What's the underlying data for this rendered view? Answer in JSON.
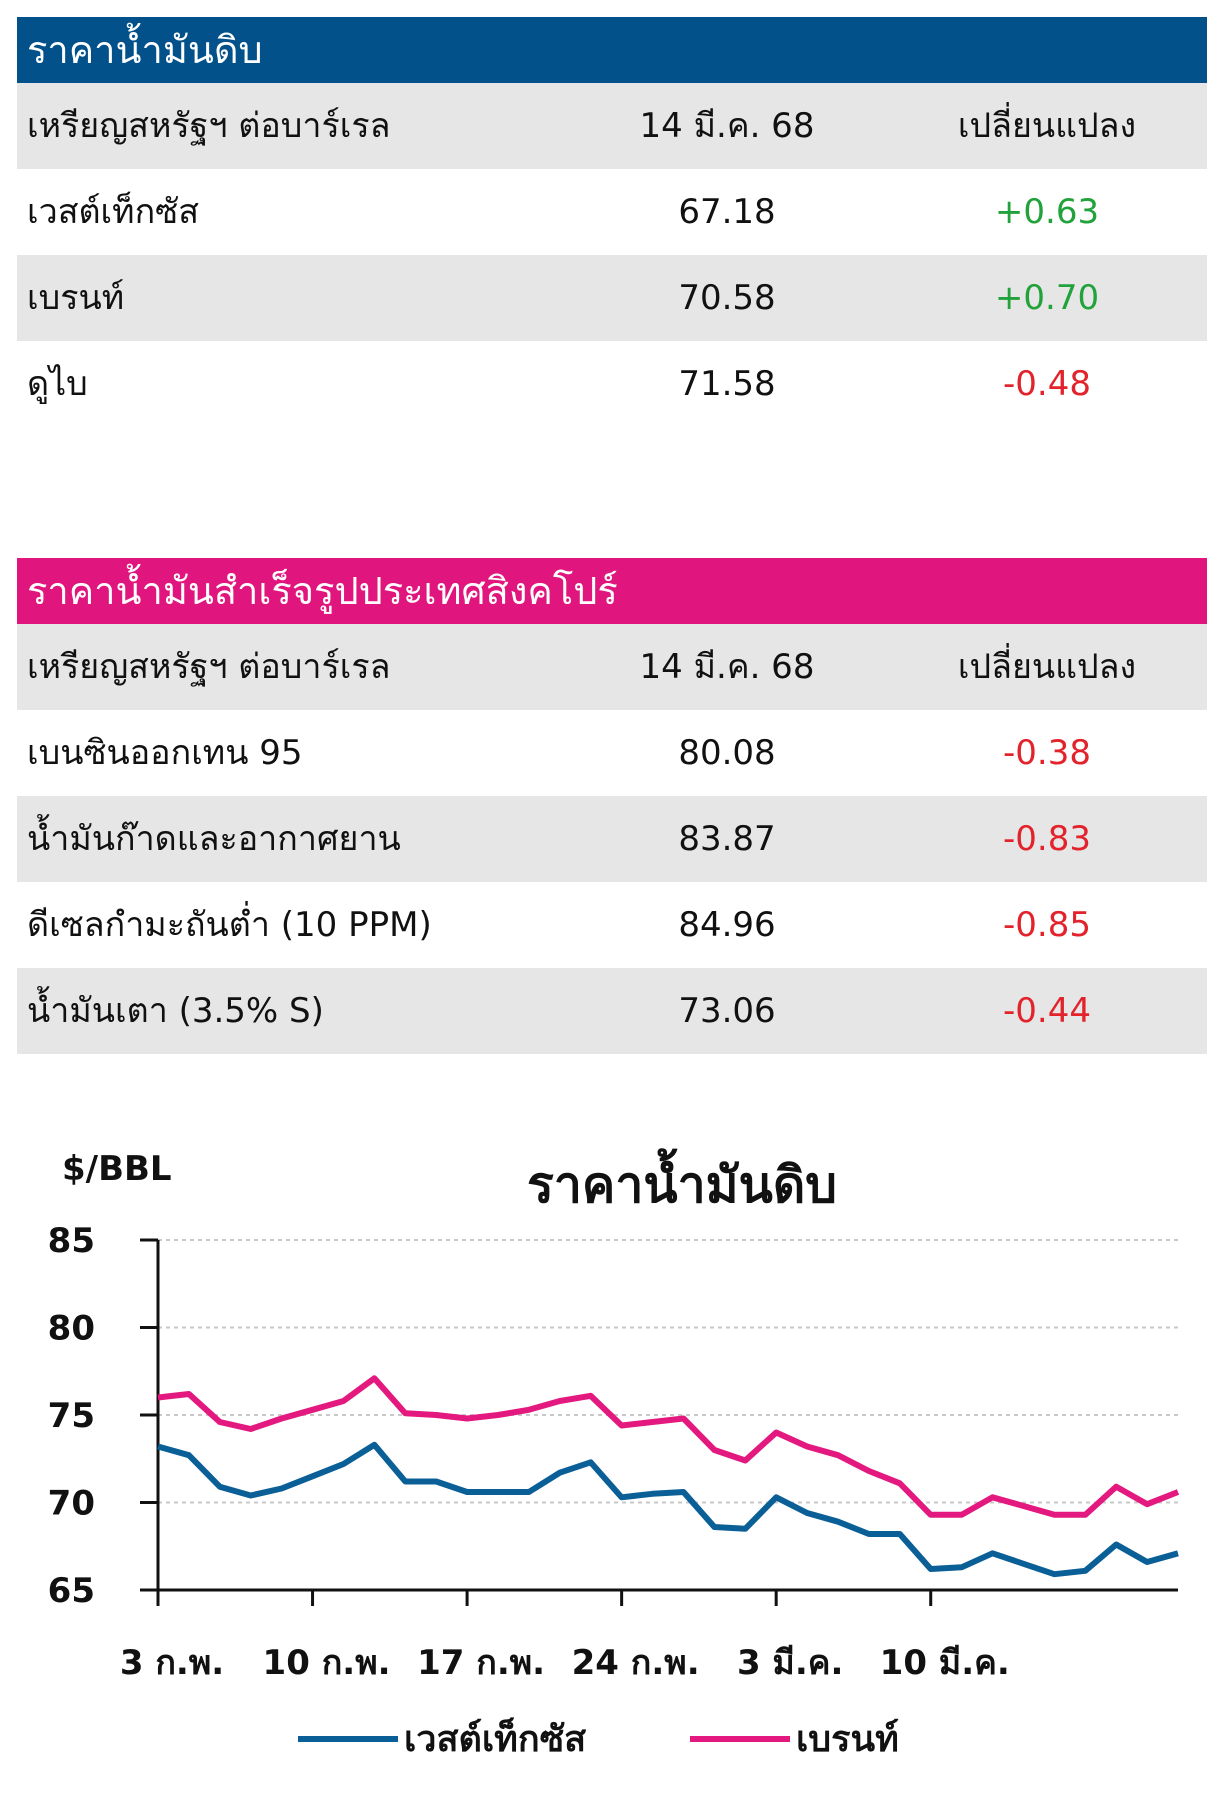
{
  "crude_table": {
    "title": "ราคาน้ำมันดิบ",
    "header": {
      "unit": "เหรียญสหรัฐฯ ต่อบาร์เรล",
      "date": "14 มี.ค. 68",
      "change": "เปลี่ยนแปลง"
    },
    "rows": [
      {
        "name": "เวสต์เท็กซัส",
        "price": "67.18",
        "change": "+0.63",
        "direction": "up"
      },
      {
        "name": "เบรนท์",
        "price": "70.58",
        "change": "+0.70",
        "direction": "up"
      },
      {
        "name": "ดูไบ",
        "price": "71.58",
        "change": "-0.48",
        "direction": "down"
      }
    ],
    "header_color": "#02518a"
  },
  "singapore_table": {
    "title": "ราคาน้ำมันสำเร็จรูปประเทศสิงคโปร์",
    "header": {
      "unit": "เหรียญสหรัฐฯ ต่อบาร์เรล",
      "date": "14 มี.ค. 68",
      "change": "เปลี่ยนแปลง"
    },
    "rows": [
      {
        "name": "เบนซินออกเทน 95",
        "price": "80.08",
        "change": "-0.38",
        "direction": "down"
      },
      {
        "name": "น้ำมันก๊าดและอากาศยาน",
        "price": "83.87",
        "change": "-0.83",
        "direction": "down"
      },
      {
        "name": "ดีเซลกำมะถันต่ำ (10 PPM)",
        "price": "84.96",
        "change": "-0.85",
        "direction": "down"
      },
      {
        "name": "น้ำมันเตา (3.5% S)",
        "price": "73.06",
        "change": "-0.44",
        "direction": "down"
      }
    ],
    "header_color": "#e0157d"
  },
  "chart_data": {
    "type": "line",
    "title": "ราคาน้ำมันดิบ",
    "ylabel": "$/BBL",
    "xlabel": "",
    "ylim": [
      65,
      85
    ],
    "yticks": [
      85,
      80,
      75,
      70,
      65
    ],
    "xtick_labels": [
      "3 ก.พ.",
      "10 ก.พ.",
      "17 ก.พ.",
      "24 ก.พ.",
      "3 มี.ค.",
      "10 มี.ค."
    ],
    "xtick_index": [
      0,
      5,
      10,
      15,
      20,
      25
    ],
    "grid": true,
    "legend_position": "bottom",
    "series": [
      {
        "name": "เวสต์เท็กซัส",
        "color": "#0b5f97",
        "values": [
          73.2,
          72.7,
          70.9,
          70.4,
          70.8,
          71.5,
          72.2,
          73.3,
          71.2,
          71.2,
          70.6,
          70.6,
          70.6,
          71.7,
          72.3,
          70.3,
          70.5,
          70.6,
          68.6,
          68.5,
          70.3,
          69.4,
          68.9,
          68.2,
          68.2,
          66.2,
          66.3,
          67.1,
          66.5,
          65.9,
          66.1,
          67.6,
          66.6,
          67.1
        ]
      },
      {
        "name": "เบรนท์",
        "color": "#e3197f",
        "values": [
          76.0,
          76.2,
          74.6,
          74.2,
          74.8,
          75.3,
          75.8,
          77.1,
          75.1,
          75.0,
          74.8,
          75.0,
          75.3,
          75.8,
          76.1,
          74.4,
          74.6,
          74.8,
          73.0,
          72.4,
          74.0,
          73.2,
          72.7,
          71.8,
          71.1,
          69.3,
          69.3,
          70.3,
          69.8,
          69.3,
          69.3,
          70.9,
          69.9,
          70.6
        ]
      }
    ]
  }
}
